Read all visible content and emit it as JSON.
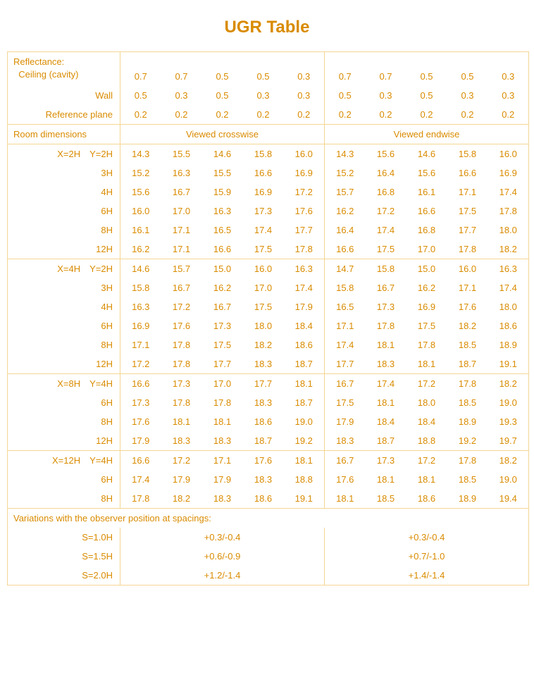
{
  "title": "UGR Table",
  "colors": {
    "text": "#d98b00",
    "border": "#f4d693",
    "background": "#ffffff"
  },
  "typography": {
    "title_fontsize": 24,
    "body_fontsize": 13,
    "font_family": "Verdana, Arial, sans-serif"
  },
  "reflectance_labels": {
    "lead": "Reflectance:",
    "ceiling": "Ceiling (cavity)",
    "wall": "Wall",
    "refplane": "Reference plane"
  },
  "ceiling_vals": [
    "0.7",
    "0.7",
    "0.5",
    "0.5",
    "0.3",
    "0.7",
    "0.7",
    "0.5",
    "0.5",
    "0.3"
  ],
  "wall_vals": [
    "0.5",
    "0.3",
    "0.5",
    "0.3",
    "0.3",
    "0.5",
    "0.3",
    "0.5",
    "0.3",
    "0.3"
  ],
  "refplane_vals": [
    "0.2",
    "0.2",
    "0.2",
    "0.2",
    "0.2",
    "0.2",
    "0.2",
    "0.2",
    "0.2",
    "0.2"
  ],
  "room_dim_label": "Room dimensions",
  "view_crosswise": "Viewed crosswise",
  "view_endwise": "Viewed endwise",
  "groups": [
    {
      "rows": [
        {
          "label": "X=2H Y=2H",
          "v": [
            "14.3",
            "15.5",
            "14.6",
            "15.8",
            "16.0",
            "14.3",
            "15.6",
            "14.6",
            "15.8",
            "16.0"
          ]
        },
        {
          "label": "3H",
          "v": [
            "15.2",
            "16.3",
            "15.5",
            "16.6",
            "16.9",
            "15.2",
            "16.4",
            "15.6",
            "16.6",
            "16.9"
          ]
        },
        {
          "label": "4H",
          "v": [
            "15.6",
            "16.7",
            "15.9",
            "16.9",
            "17.2",
            "15.7",
            "16.8",
            "16.1",
            "17.1",
            "17.4"
          ]
        },
        {
          "label": "6H",
          "v": [
            "16.0",
            "17.0",
            "16.3",
            "17.3",
            "17.6",
            "16.2",
            "17.2",
            "16.6",
            "17.5",
            "17.8"
          ]
        },
        {
          "label": "8H",
          "v": [
            "16.1",
            "17.1",
            "16.5",
            "17.4",
            "17.7",
            "16.4",
            "17.4",
            "16.8",
            "17.7",
            "18.0"
          ]
        },
        {
          "label": "12H",
          "v": [
            "16.2",
            "17.1",
            "16.6",
            "17.5",
            "17.8",
            "16.6",
            "17.5",
            "17.0",
            "17.8",
            "18.2"
          ]
        }
      ]
    },
    {
      "rows": [
        {
          "label": "X=4H Y=2H",
          "v": [
            "14.6",
            "15.7",
            "15.0",
            "16.0",
            "16.3",
            "14.7",
            "15.8",
            "15.0",
            "16.0",
            "16.3"
          ]
        },
        {
          "label": "3H",
          "v": [
            "15.8",
            "16.7",
            "16.2",
            "17.0",
            "17.4",
            "15.8",
            "16.7",
            "16.2",
            "17.1",
            "17.4"
          ]
        },
        {
          "label": "4H",
          "v": [
            "16.3",
            "17.2",
            "16.7",
            "17.5",
            "17.9",
            "16.5",
            "17.3",
            "16.9",
            "17.6",
            "18.0"
          ]
        },
        {
          "label": "6H",
          "v": [
            "16.9",
            "17.6",
            "17.3",
            "18.0",
            "18.4",
            "17.1",
            "17.8",
            "17.5",
            "18.2",
            "18.6"
          ]
        },
        {
          "label": "8H",
          "v": [
            "17.1",
            "17.8",
            "17.5",
            "18.2",
            "18.6",
            "17.4",
            "18.1",
            "17.8",
            "18.5",
            "18.9"
          ]
        },
        {
          "label": "12H",
          "v": [
            "17.2",
            "17.8",
            "17.7",
            "18.3",
            "18.7",
            "17.7",
            "18.3",
            "18.1",
            "18.7",
            "19.1"
          ]
        }
      ]
    },
    {
      "rows": [
        {
          "label": "X=8H Y=4H",
          "v": [
            "16.6",
            "17.3",
            "17.0",
            "17.7",
            "18.1",
            "16.7",
            "17.4",
            "17.2",
            "17.8",
            "18.2"
          ]
        },
        {
          "label": "6H",
          "v": [
            "17.3",
            "17.8",
            "17.8",
            "18.3",
            "18.7",
            "17.5",
            "18.1",
            "18.0",
            "18.5",
            "19.0"
          ]
        },
        {
          "label": "8H",
          "v": [
            "17.6",
            "18.1",
            "18.1",
            "18.6",
            "19.0",
            "17.9",
            "18.4",
            "18.4",
            "18.9",
            "19.3"
          ]
        },
        {
          "label": "12H",
          "v": [
            "17.9",
            "18.3",
            "18.3",
            "18.7",
            "19.2",
            "18.3",
            "18.7",
            "18.8",
            "19.2",
            "19.7"
          ]
        }
      ]
    },
    {
      "rows": [
        {
          "label": "X=12H Y=4H",
          "v": [
            "16.6",
            "17.2",
            "17.1",
            "17.6",
            "18.1",
            "16.7",
            "17.3",
            "17.2",
            "17.8",
            "18.2"
          ]
        },
        {
          "label": "6H",
          "v": [
            "17.4",
            "17.9",
            "17.9",
            "18.3",
            "18.8",
            "17.6",
            "18.1",
            "18.1",
            "18.5",
            "19.0"
          ]
        },
        {
          "label": "8H",
          "v": [
            "17.8",
            "18.2",
            "18.3",
            "18.6",
            "19.1",
            "18.1",
            "18.5",
            "18.6",
            "18.9",
            "19.4"
          ]
        }
      ]
    }
  ],
  "variations_title": "Variations with the observer position at spacings:",
  "variations": [
    {
      "label": "S=1.0H",
      "cross": "+0.3/-0.4",
      "end": "+0.3/-0.4"
    },
    {
      "label": "S=1.5H",
      "cross": "+0.6/-0.9",
      "end": "+0.7/-1.0"
    },
    {
      "label": "S=2.0H",
      "cross": "+1.2/-1.4",
      "end": "+1.4/-1.4"
    }
  ]
}
